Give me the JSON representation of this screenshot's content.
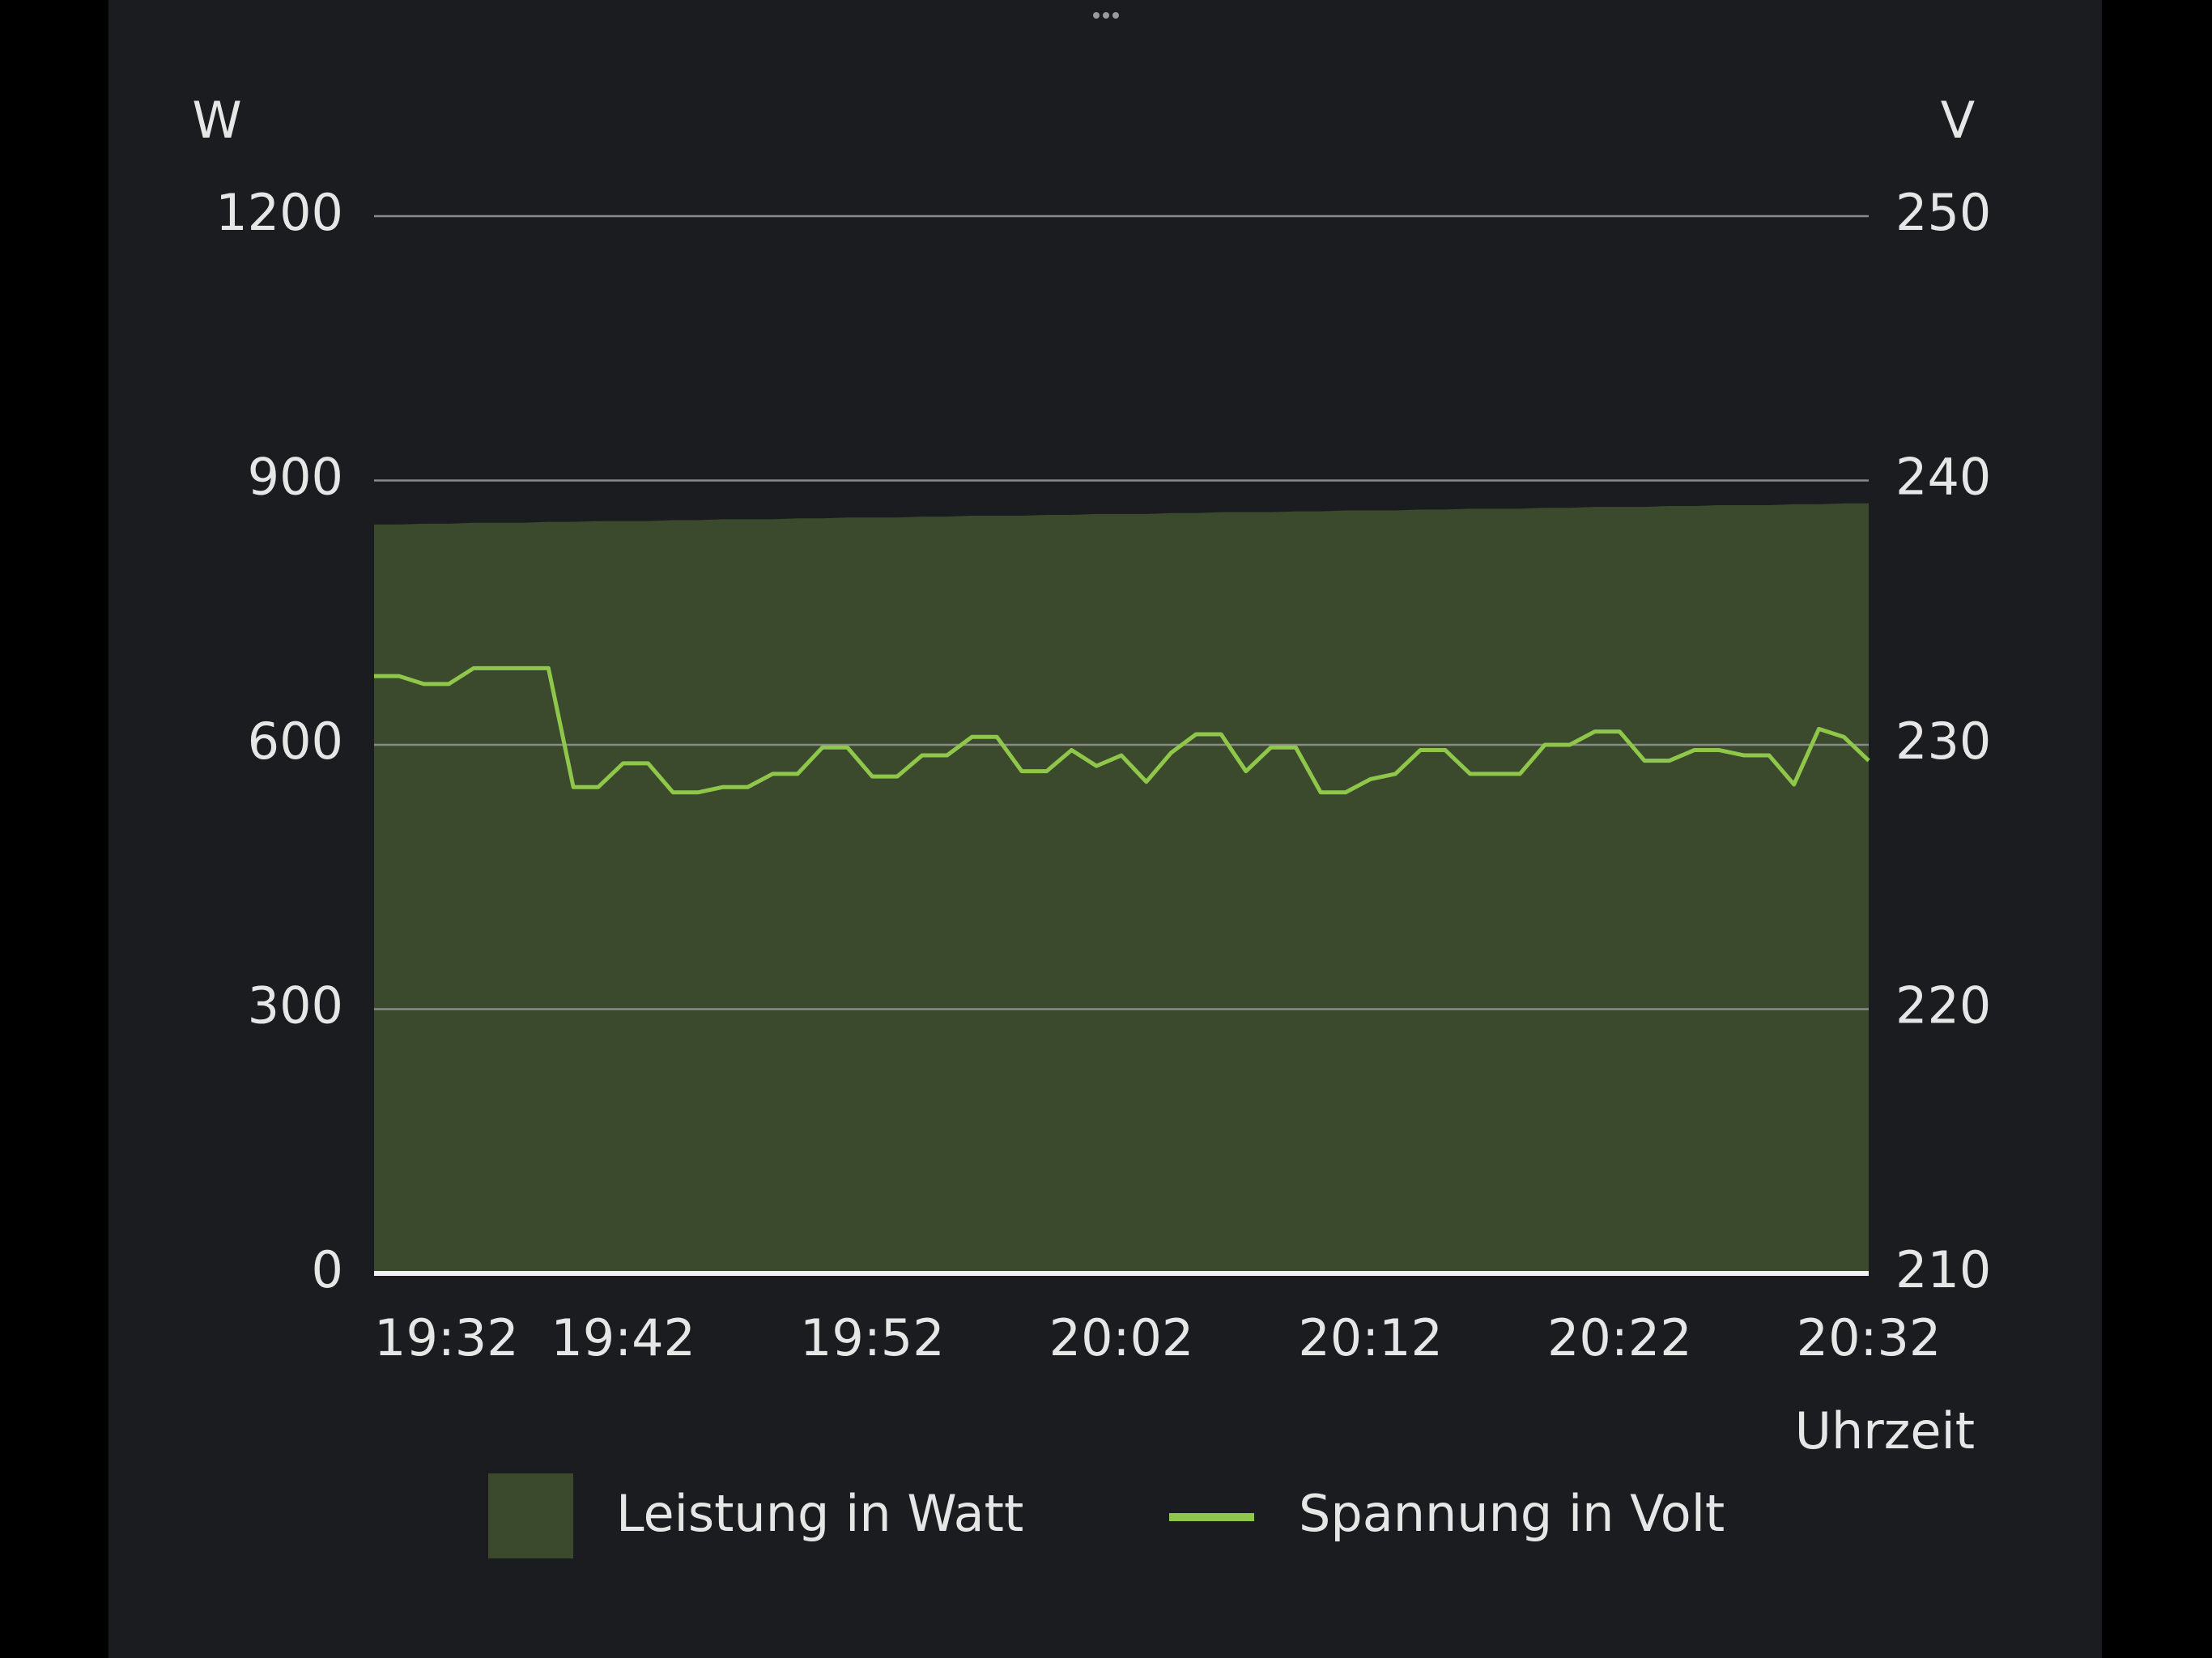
{
  "chart_data": {
    "type": "combo",
    "ylabel": "W",
    "y2label": "V",
    "xlabel": "Uhrzeit",
    "x": [
      "19:32",
      "19:33",
      "19:34",
      "19:35",
      "19:36",
      "19:37",
      "19:38",
      "19:39",
      "19:40",
      "19:41",
      "19:42",
      "19:43",
      "19:44",
      "19:45",
      "19:46",
      "19:47",
      "19:48",
      "19:49",
      "19:50",
      "19:51",
      "19:52",
      "19:53",
      "19:54",
      "19:55",
      "19:56",
      "19:57",
      "19:58",
      "19:59",
      "20:00",
      "20:01",
      "20:02",
      "20:03",
      "20:04",
      "20:05",
      "20:06",
      "20:07",
      "20:08",
      "20:09",
      "20:10",
      "20:11",
      "20:12",
      "20:13",
      "20:14",
      "20:15",
      "20:16",
      "20:17",
      "20:18",
      "20:19",
      "20:20",
      "20:21",
      "20:22",
      "20:23",
      "20:24",
      "20:25",
      "20:26",
      "20:27",
      "20:28",
      "20:29",
      "20:30",
      "20:31",
      "20:32"
    ],
    "xticks": [
      "19:32",
      "19:42",
      "19:52",
      "20:02",
      "20:12",
      "20:22",
      "20:32"
    ],
    "ylim": [
      0,
      1200
    ],
    "yticks": [
      0,
      300,
      600,
      900,
      1200
    ],
    "y2lim": [
      210,
      250
    ],
    "y2ticks": [
      210,
      220,
      230,
      240,
      250
    ],
    "grid": true,
    "series": [
      {
        "name": "Leistung in Watt",
        "type": "area",
        "color": "#3b4a2c",
        "values": [
          850,
          850,
          851,
          851,
          852,
          852,
          852,
          853,
          853,
          854,
          854,
          854,
          855,
          855,
          856,
          856,
          856,
          857,
          857,
          858,
          858,
          858,
          859,
          859,
          860,
          860,
          860,
          861,
          861,
          862,
          862,
          862,
          863,
          863,
          864,
          864,
          864,
          865,
          865,
          866,
          866,
          866,
          867,
          867,
          868,
          868,
          868,
          869,
          869,
          870,
          870,
          870,
          871,
          871,
          872,
          872,
          872,
          873,
          873,
          874,
          874
        ]
      },
      {
        "name": "Spannung in Volt",
        "type": "line",
        "axis": "y2",
        "color": "#8fc74a",
        "values": [
          232.6,
          232.6,
          232.3,
          232.3,
          232.9,
          232.9,
          232.9,
          232.9,
          228.4,
          228.4,
          229.3,
          229.3,
          228.2,
          228.2,
          228.4,
          228.4,
          228.9,
          228.9,
          229.9,
          229.9,
          228.8,
          228.8,
          229.6,
          229.6,
          230.3,
          230.3,
          229.0,
          229.0,
          229.8,
          229.2,
          229.6,
          228.6,
          229.7,
          230.4,
          230.4,
          229.0,
          229.9,
          229.9,
          228.2,
          228.2,
          228.7,
          228.9,
          229.8,
          229.8,
          228.9,
          228.9,
          228.9,
          230.0,
          230.0,
          230.5,
          230.5,
          229.4,
          229.4,
          229.8,
          229.8,
          229.6,
          229.6,
          228.5,
          230.6,
          230.3,
          229.4
        ]
      }
    ]
  }
}
